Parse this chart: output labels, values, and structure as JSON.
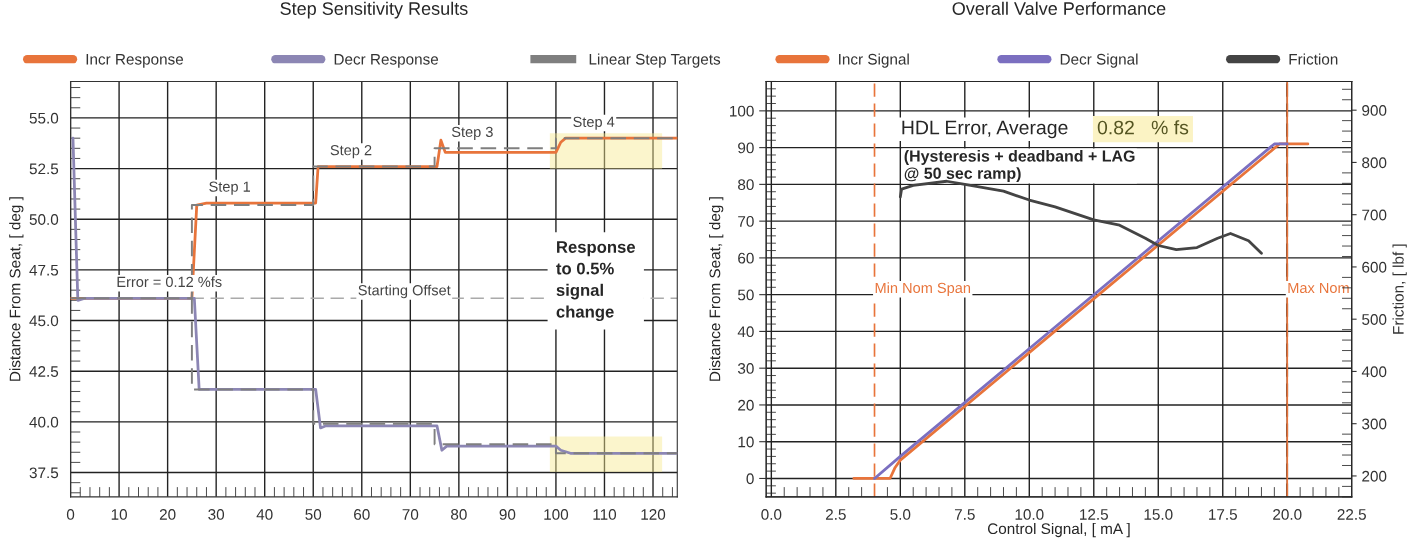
{
  "chart_data": [
    {
      "type": "line",
      "title": "Step Sensitivity Results",
      "ylabel": "Distance From Seat, [ deg ]",
      "xlim": [
        0,
        125
      ],
      "ylim": [
        36.3,
        56.8
      ],
      "xticks": [
        0,
        10,
        20,
        30,
        40,
        50,
        60,
        70,
        80,
        90,
        100,
        110,
        120
      ],
      "yticks": [
        {
          "value": 37.5,
          "label": "37.5"
        },
        {
          "value": 40.0,
          "label": "40.0"
        },
        {
          "value": 42.5,
          "label": "42.5"
        },
        {
          "value": 45.0,
          "label": "45.0"
        },
        {
          "value": 47.5,
          "label": "47.5"
        },
        {
          "value": 50.0,
          "label": "50.0"
        },
        {
          "value": 52.5,
          "label": "52.5"
        },
        {
          "value": 55.0,
          "label": "55.0"
        }
      ],
      "grid": true,
      "legend": "top",
      "marker": "none",
      "series": [
        {
          "name": "Incr Response",
          "color": "#e8743b",
          "line_style": "solid",
          "x": [
            0,
            25,
            26,
            28,
            50.5,
            51,
            75.5,
            76.3,
            77.2,
            78,
            100,
            101,
            102,
            125
          ],
          "values": [
            46.1,
            46.1,
            50.7,
            50.8,
            50.8,
            52.6,
            52.6,
            53.9,
            53.3,
            53.3,
            53.3,
            53.8,
            54.0,
            54.0
          ]
        },
        {
          "name": "Decr Response",
          "color": "#8c86b4",
          "line_style": "solid",
          "x": [
            0.5,
            1.5,
            3,
            25.5,
            26.5,
            28,
            50.5,
            51.5,
            52.5,
            75.5,
            76.5,
            77.5,
            100,
            101,
            103,
            125
          ],
          "values": [
            54.0,
            46.0,
            46.1,
            46.1,
            41.6,
            41.6,
            41.6,
            39.7,
            39.8,
            39.8,
            38.6,
            38.8,
            38.8,
            38.6,
            38.45,
            38.45
          ]
        },
        {
          "name": "Linear Step Targets",
          "color": "#7f7f7f",
          "line_style": "dashed",
          "x": [
            0,
            25,
            25,
            50,
            50,
            75,
            75,
            100,
            100,
            125
          ],
          "values": [
            46.1,
            46.1,
            50.7,
            50.7,
            52.6,
            52.6,
            53.5,
            53.5,
            54.0,
            54.0
          ]
        },
        {
          "color": "#7f7f7f",
          "line_style": "dashed",
          "x": [
            25,
            25,
            50,
            50,
            75,
            75,
            100,
            100,
            125
          ],
          "values": [
            46.1,
            41.6,
            41.6,
            39.9,
            39.9,
            38.9,
            38.9,
            38.45,
            38.45
          ]
        }
      ],
      "ref_lines": [
        {
          "axis": "y",
          "value": 46.1,
          "label": "Starting Offset",
          "color": "#aaaaaa",
          "line_style": "dashed"
        }
      ],
      "annotations": [
        {
          "text": "Step 1",
          "x": 25,
          "y": 50.8
        },
        {
          "text": "Step 2",
          "x": 50,
          "y": 52.6
        },
        {
          "text": "Step 3",
          "x": 75,
          "y": 53.5
        },
        {
          "text": "Step 4",
          "x": 100,
          "y": 54.0
        },
        {
          "text": "Error = 0.12 %fs",
          "x": 6,
          "y": 46.1
        },
        "Response\nto 0.5%\nsignal\nchange"
      ]
    },
    {
      "type": "line",
      "title": "Overall Valve Performance",
      "xlabel": "Control Signal, [ mA ]",
      "ylabel": "Distance From Seat, [ deg ]",
      "y2label": "Friction, [ lbf ]",
      "xlim": [
        -0.2,
        22.5
      ],
      "ylim": [
        -5,
        108
      ],
      "y2lim": [
        160,
        955
      ],
      "xticks": [
        {
          "value": 0,
          "label": "0.0"
        },
        {
          "value": 2.5,
          "label": "2.5"
        },
        {
          "value": 5,
          "label": "5.0"
        },
        {
          "value": 7.5,
          "label": "7.5"
        },
        {
          "value": 10,
          "label": "10.0"
        },
        {
          "value": 12.5,
          "label": "12.5"
        },
        {
          "value": 15,
          "label": "15.0"
        },
        {
          "value": 17.5,
          "label": "17.5"
        },
        {
          "value": 20,
          "label": "20.0"
        },
        {
          "value": 22.5,
          "label": "22.5"
        }
      ],
      "yticks": [
        0,
        10,
        20,
        30,
        40,
        50,
        60,
        70,
        80,
        90,
        100
      ],
      "y2ticks": [
        200,
        300,
        400,
        500,
        600,
        700,
        800,
        900
      ],
      "grid": true,
      "legend": "top",
      "marker": "none",
      "series": [
        {
          "name": "Incr Signal",
          "color": "#e8743b",
          "line_style": "solid",
          "x": [
            3.2,
            4.6,
            4.8,
            5.0,
            19.7,
            20.8
          ],
          "values": [
            0,
            0,
            3,
            5,
            91,
            91
          ]
        },
        {
          "name": "Decr Signal",
          "color": "#7b6fc0",
          "line_style": "solid",
          "x": [
            4.0,
            5.0,
            19.5,
            20.0
          ],
          "values": [
            0,
            6,
            91,
            91
          ]
        },
        {
          "name": "Friction",
          "color": "#444444",
          "line_style": "solid",
          "axis": "y2",
          "x": [
            5.0,
            5.05,
            5.5,
            6.8,
            7.5,
            9,
            10,
            11,
            12.5,
            13.5,
            14.5,
            15.0,
            15.7,
            16.5,
            17.3,
            17.8,
            18.5,
            19.0
          ],
          "values": [
            734,
            749,
            756,
            764,
            758,
            745,
            728,
            715,
            690,
            680,
            655,
            641,
            633,
            637,
            655,
            664,
            650,
            626
          ]
        }
      ],
      "ref_lines": [
        {
          "axis": "x",
          "value": 4.0,
          "label": "Min Nom Span",
          "color": "#e8743b",
          "line_style": "dashed"
        },
        {
          "axis": "x",
          "value": 20.0,
          "color": "#000000",
          "line_style": "dashed"
        },
        {
          "axis": "x",
          "value": 20.0,
          "label": "Max Nom",
          "color": "#e8743b",
          "line_style": "solid"
        }
      ],
      "annotations": [
        "HDL Error, Average",
        "0.82   % fs",
        "(Hysteresis + deadband + LAG\n@ 50 sec ramp)"
      ]
    }
  ]
}
